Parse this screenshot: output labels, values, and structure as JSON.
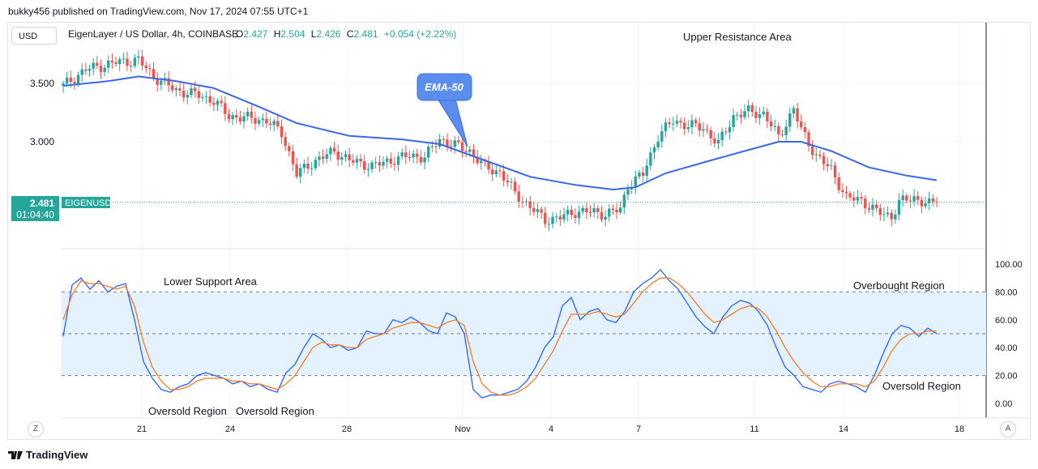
{
  "publisher_text": "bukky456 published on TradingView.com, Nov 17, 2024 07:55 UTC+1",
  "currency_button": "USD",
  "header": {
    "symbol": "EigenLayer / US Dollar, 4h, COINBASE",
    "o_label": "O",
    "o_value": "2.427",
    "h_label": "H",
    "h_value": "2.504",
    "l_label": "L",
    "l_value": "2.426",
    "c_label": "C",
    "c_value": "2.481",
    "change": "+0.054 (+2.22%)"
  },
  "price_tag": {
    "price": "2.481",
    "timer": "01:04:40",
    "ticker": "EIGENUSD"
  },
  "annotations": {
    "upper_resistance": "Upper Resistance Area",
    "ema_callout": "EMA-50",
    "lower_support": "Lower Support Area",
    "overbought": "Overbought Region",
    "oversold_1": "Oversold Region",
    "oversold_2": "Oversold Region",
    "oversold_3": "Oversold Region"
  },
  "bottom_buttons": {
    "left": "Z",
    "right": "A"
  },
  "logo_text": "TradingView",
  "colors": {
    "up": "#26a69a",
    "down": "#ef5350",
    "ema": "#3867e8",
    "rsi_fast": "#2962ff",
    "rsi_slow": "#f57c2b",
    "band": "#e3f2fd",
    "callout": "#5b8def"
  },
  "chart_data": [
    {
      "type": "candlestick",
      "title": "EigenLayer / US Dollar, 4h, COINBASE",
      "y_ticks": [
        "3.500",
        "3.000"
      ],
      "ylim": [
        2.1,
        3.85
      ],
      "x_ticks": [
        "21",
        "24",
        "28",
        "Nov",
        "4",
        "7",
        "11",
        "14",
        "18"
      ],
      "last_price": 2.481,
      "close_points": [
        {
          "t": 0,
          "c": 3.48
        },
        {
          "t": 6,
          "c": 3.62
        },
        {
          "t": 14,
          "c": 3.68
        },
        {
          "t": 20,
          "c": 3.7
        },
        {
          "t": 24,
          "c": 3.56
        },
        {
          "t": 30,
          "c": 3.44
        },
        {
          "t": 36,
          "c": 3.4
        },
        {
          "t": 40,
          "c": 3.35
        },
        {
          "t": 44,
          "c": 3.22
        },
        {
          "t": 50,
          "c": 3.2
        },
        {
          "t": 54,
          "c": 3.18
        },
        {
          "t": 58,
          "c": 3.08
        },
        {
          "t": 62,
          "c": 2.72
        },
        {
          "t": 66,
          "c": 2.82
        },
        {
          "t": 72,
          "c": 2.92
        },
        {
          "t": 76,
          "c": 2.84
        },
        {
          "t": 82,
          "c": 2.79
        },
        {
          "t": 88,
          "c": 2.85
        },
        {
          "t": 92,
          "c": 2.88
        },
        {
          "t": 96,
          "c": 2.87
        },
        {
          "t": 100,
          "c": 3.02
        },
        {
          "t": 104,
          "c": 2.97
        },
        {
          "t": 108,
          "c": 2.92
        },
        {
          "t": 112,
          "c": 2.78
        },
        {
          "t": 116,
          "c": 2.74
        },
        {
          "t": 120,
          "c": 2.56
        },
        {
          "t": 124,
          "c": 2.44
        },
        {
          "t": 128,
          "c": 2.33
        },
        {
          "t": 132,
          "c": 2.35
        },
        {
          "t": 136,
          "c": 2.4
        },
        {
          "t": 140,
          "c": 2.4
        },
        {
          "t": 144,
          "c": 2.38
        },
        {
          "t": 148,
          "c": 2.42
        },
        {
          "t": 150,
          "c": 2.63
        },
        {
          "t": 154,
          "c": 2.72
        },
        {
          "t": 158,
          "c": 3.05
        },
        {
          "t": 162,
          "c": 3.18
        },
        {
          "t": 166,
          "c": 3.14
        },
        {
          "t": 170,
          "c": 3.12
        },
        {
          "t": 174,
          "c": 2.98
        },
        {
          "t": 178,
          "c": 3.22
        },
        {
          "t": 182,
          "c": 3.26
        },
        {
          "t": 186,
          "c": 3.24
        },
        {
          "t": 190,
          "c": 3.04
        },
        {
          "t": 194,
          "c": 3.28
        },
        {
          "t": 196,
          "c": 3.1
        },
        {
          "t": 200,
          "c": 2.88
        },
        {
          "t": 204,
          "c": 2.76
        },
        {
          "t": 208,
          "c": 2.52
        },
        {
          "t": 212,
          "c": 2.5
        },
        {
          "t": 216,
          "c": 2.4
        },
        {
          "t": 220,
          "c": 2.36
        },
        {
          "t": 222,
          "c": 2.48
        },
        {
          "t": 226,
          "c": 2.52
        },
        {
          "t": 230,
          "c": 2.46
        },
        {
          "t": 232,
          "c": 2.481
        }
      ],
      "ema50": [
        {
          "t": 0,
          "v": 3.48
        },
        {
          "t": 12,
          "v": 3.52
        },
        {
          "t": 20,
          "v": 3.56
        },
        {
          "t": 30,
          "v": 3.52
        },
        {
          "t": 40,
          "v": 3.46
        },
        {
          "t": 52,
          "v": 3.3
        },
        {
          "t": 62,
          "v": 3.16
        },
        {
          "t": 76,
          "v": 3.05
        },
        {
          "t": 90,
          "v": 3.02
        },
        {
          "t": 100,
          "v": 2.98
        },
        {
          "t": 112,
          "v": 2.84
        },
        {
          "t": 124,
          "v": 2.7
        },
        {
          "t": 136,
          "v": 2.63
        },
        {
          "t": 146,
          "v": 2.59
        },
        {
          "t": 152,
          "v": 2.61
        },
        {
          "t": 160,
          "v": 2.73
        },
        {
          "t": 172,
          "v": 2.84
        },
        {
          "t": 182,
          "v": 2.93
        },
        {
          "t": 190,
          "v": 3.0
        },
        {
          "t": 196,
          "v": 3.0
        },
        {
          "t": 204,
          "v": 2.92
        },
        {
          "t": 214,
          "v": 2.78
        },
        {
          "t": 224,
          "v": 2.71
        },
        {
          "t": 232,
          "v": 2.67
        }
      ]
    },
    {
      "type": "line",
      "title": "",
      "y_ticks": [
        "100.00",
        "80.00",
        "60.00",
        "40.00",
        "20.00",
        "0.00"
      ],
      "ylim": [
        -8,
        108
      ],
      "levels": [
        80,
        50,
        20
      ],
      "band": [
        20,
        80
      ],
      "series": [
        {
          "values": [
            48,
            85,
            90,
            82,
            88,
            80,
            84,
            86,
            60,
            30,
            18,
            10,
            8,
            12,
            14,
            20,
            22,
            20,
            18,
            14,
            16,
            12,
            14,
            10,
            8,
            22,
            28,
            40,
            50,
            46,
            40,
            42,
            38,
            40,
            52,
            50,
            50,
            60,
            58,
            62,
            58,
            52,
            50,
            65,
            62,
            50,
            10,
            4,
            6,
            6,
            8,
            10,
            16,
            26,
            40,
            48,
            70,
            76,
            60,
            66,
            68,
            60,
            58,
            66,
            80,
            86,
            90,
            96,
            88,
            82,
            72,
            62,
            55,
            50,
            62,
            70,
            74,
            72,
            66,
            56,
            40,
            26,
            20,
            12,
            10,
            8,
            14,
            16,
            14,
            12,
            8,
            20,
            36,
            50,
            56,
            54,
            48,
            54,
            50
          ]
        },
        {
          "values": [
            60,
            78,
            88,
            86,
            86,
            84,
            82,
            84,
            70,
            44,
            26,
            16,
            10,
            10,
            12,
            16,
            18,
            18,
            18,
            16,
            16,
            14,
            14,
            12,
            10,
            14,
            20,
            30,
            40,
            44,
            42,
            42,
            40,
            40,
            46,
            48,
            50,
            54,
            56,
            58,
            58,
            56,
            54,
            58,
            60,
            56,
            30,
            14,
            8,
            6,
            6,
            8,
            12,
            18,
            28,
            38,
            52,
            64,
            64,
            64,
            66,
            64,
            62,
            64,
            72,
            80,
            86,
            90,
            90,
            86,
            80,
            72,
            64,
            58,
            60,
            64,
            68,
            70,
            68,
            62,
            52,
            40,
            30,
            22,
            16,
            12,
            12,
            14,
            14,
            14,
            12,
            16,
            26,
            38,
            46,
            50,
            50,
            52,
            52
          ]
        }
      ]
    }
  ]
}
